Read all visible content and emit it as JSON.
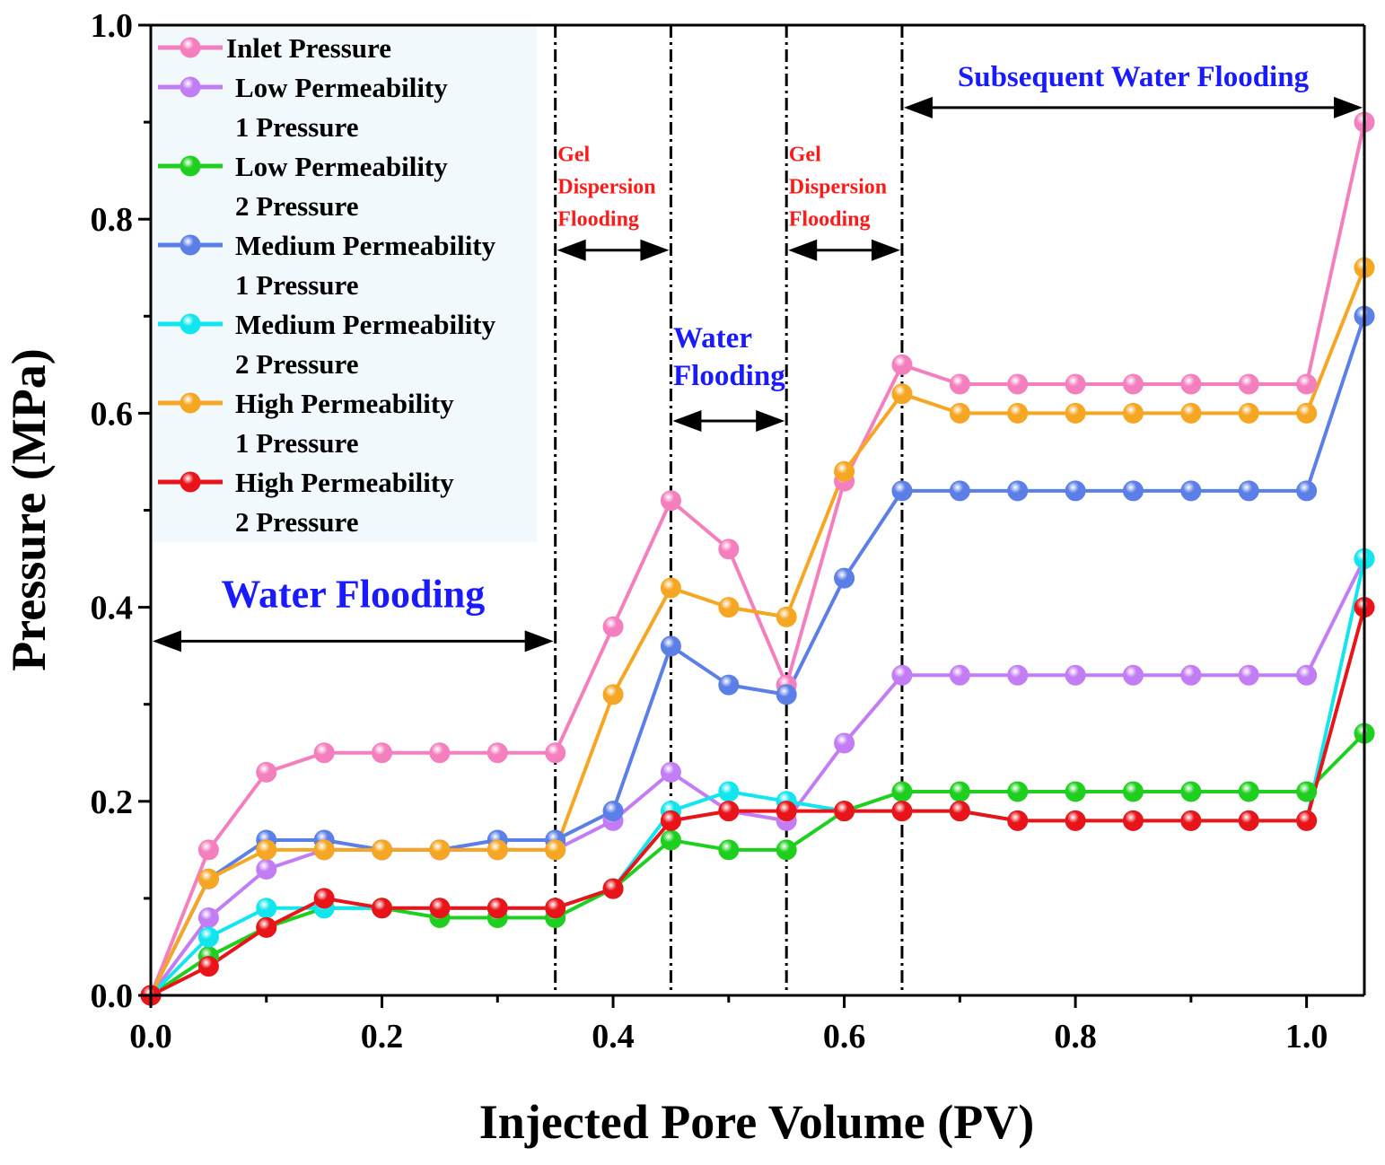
{
  "chart_data": {
    "type": "line",
    "title": "",
    "xlabel": "Injected Pore Volume (PV)",
    "ylabel": "Pressure (MPa)",
    "xlim": [
      0,
      1.05
    ],
    "ylim": [
      0,
      1.0
    ],
    "x_ticks": [
      "0.0",
      "0.2",
      "0.4",
      "0.6",
      "0.8",
      "1.0"
    ],
    "y_ticks": [
      "0.0",
      "0.2",
      "0.4",
      "0.6",
      "0.8",
      "1.0"
    ],
    "grid": false,
    "legend_position": "top-left",
    "x": [
      0,
      0.05,
      0.1,
      0.15,
      0.2,
      0.25,
      0.3,
      0.35,
      0.4,
      0.45,
      0.5,
      0.55,
      0.6,
      0.65,
      0.7,
      0.75,
      0.8,
      0.85,
      0.9,
      0.95,
      1.0,
      1.05
    ],
    "series": [
      {
        "name": "Inlet Pressure",
        "legend_lines": [
          "Inlet Pressure"
        ],
        "color": "#f47fbf",
        "values": [
          0,
          0.15,
          0.23,
          0.25,
          0.25,
          0.25,
          0.25,
          0.25,
          0.38,
          0.51,
          0.46,
          0.32,
          0.53,
          0.65,
          0.63,
          0.63,
          0.63,
          0.63,
          0.63,
          0.63,
          0.63,
          0.9
        ]
      },
      {
        "name": "Low Permeability 1 Pressure",
        "legend_lines": [
          "Low Permeability",
          "1 Pressure"
        ],
        "color": "#c27df5",
        "values": [
          0,
          0.08,
          0.13,
          0.15,
          0.15,
          0.15,
          0.15,
          0.15,
          0.18,
          0.23,
          0.19,
          0.18,
          0.26,
          0.33,
          0.33,
          0.33,
          0.33,
          0.33,
          0.33,
          0.33,
          0.33,
          0.45
        ]
      },
      {
        "name": "Low Permeability 2 Pressure",
        "legend_lines": [
          "Low Permeability",
          "2 Pressure"
        ],
        "color": "#1fcf1f",
        "values": [
          0,
          0.04,
          0.07,
          0.09,
          0.09,
          0.08,
          0.08,
          0.08,
          0.11,
          0.16,
          0.15,
          0.15,
          0.19,
          0.21,
          0.21,
          0.21,
          0.21,
          0.21,
          0.21,
          0.21,
          0.21,
          0.27
        ]
      },
      {
        "name": "Medium Permeability 1 Pressure",
        "legend_lines": [
          "Medium Permeability",
          "1 Pressure"
        ],
        "color": "#5b7fe6",
        "values": [
          0,
          0.12,
          0.16,
          0.16,
          0.15,
          0.15,
          0.16,
          0.16,
          0.19,
          0.36,
          0.32,
          0.31,
          0.43,
          0.52,
          0.52,
          0.52,
          0.52,
          0.52,
          0.52,
          0.52,
          0.52,
          0.7
        ]
      },
      {
        "name": "Medium Permeability 2 Pressure",
        "legend_lines": [
          "Medium Permeability",
          "2 Pressure"
        ],
        "color": "#11e6ee",
        "values": [
          0,
          0.06,
          0.09,
          0.09,
          0.09,
          0.09,
          0.09,
          0.09,
          0.11,
          0.19,
          0.21,
          0.2,
          0.19,
          0.19,
          0.19,
          0.18,
          0.18,
          0.18,
          0.18,
          0.18,
          0.18,
          0.45
        ]
      },
      {
        "name": "High Permeability 1 Pressure",
        "legend_lines": [
          "High Permeability",
          "1 Pressure"
        ],
        "color": "#f5a623",
        "values": [
          0,
          0.12,
          0.15,
          0.15,
          0.15,
          0.15,
          0.15,
          0.15,
          0.31,
          0.42,
          0.4,
          0.39,
          0.54,
          0.62,
          0.6,
          0.6,
          0.6,
          0.6,
          0.6,
          0.6,
          0.6,
          0.75
        ]
      },
      {
        "name": "High Permeability 2 Pressure",
        "legend_lines": [
          "High Permeability",
          "2 Pressure"
        ],
        "color": "#e8141a",
        "values": [
          0,
          0.03,
          0.07,
          0.1,
          0.09,
          0.09,
          0.09,
          0.09,
          0.11,
          0.18,
          0.19,
          0.19,
          0.19,
          0.19,
          0.19,
          0.18,
          0.18,
          0.18,
          0.18,
          0.18,
          0.18,
          0.4
        ]
      }
    ],
    "stage_dividers_x": [
      0.35,
      0.45,
      0.55,
      0.65
    ],
    "annotations": [
      {
        "lines": [
          "Water Flooding"
        ],
        "color": "#1a1aff",
        "x_from": 0.0,
        "x_to": 0.35,
        "arrow_y": 0.365,
        "text_x": 0.175,
        "text_y": 0.4,
        "size": "large",
        "align": "middle"
      },
      {
        "lines": [
          "Gel",
          "Dispersion",
          "Flooding"
        ],
        "color": "#ff1a1a",
        "x_from": 0.35,
        "x_to": 0.45,
        "arrow_y": 0.768,
        "text_x": 0.352,
        "text_y": 0.86,
        "size": "small",
        "align": "start"
      },
      {
        "lines": [
          "Water",
          "Flooding"
        ],
        "color": "#1a1aff",
        "x_from": 0.45,
        "x_to": 0.55,
        "arrow_y": 0.592,
        "text_x": 0.452,
        "text_y": 0.668,
        "size": "medium",
        "align": "start"
      },
      {
        "lines": [
          "Gel",
          "Dispersion",
          "Flooding"
        ],
        "color": "#ff1a1a",
        "x_from": 0.55,
        "x_to": 0.65,
        "arrow_y": 0.768,
        "text_x": 0.552,
        "text_y": 0.86,
        "size": "small",
        "align": "start"
      },
      {
        "lines": [
          "Subsequent Water Flooding"
        ],
        "color": "#1a1aff",
        "x_from": 0.65,
        "x_to": 1.05,
        "arrow_y": 0.915,
        "text_x": 0.85,
        "text_y": 0.937,
        "size": "medium",
        "align": "middle"
      }
    ]
  }
}
